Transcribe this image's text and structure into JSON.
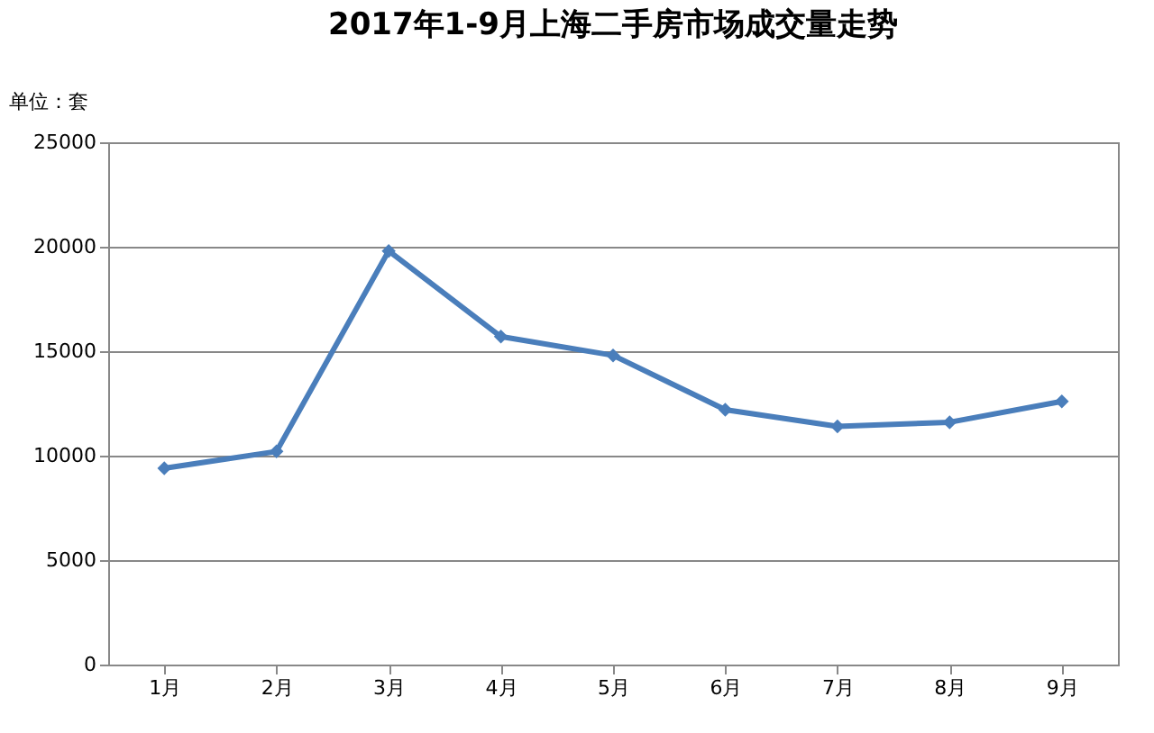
{
  "chart_data": {
    "type": "line",
    "title": "2017年1-9月上海二手房市场成交量走势",
    "ylabel": "单位：套",
    "categories": [
      "1月",
      "2月",
      "3月",
      "4月",
      "5月",
      "6月",
      "7月",
      "8月",
      "9月"
    ],
    "series": [
      {
        "color": "#4a7ebb",
        "values": [
          9400,
          10200,
          19800,
          15700,
          14800,
          12200,
          11400,
          11600,
          12600
        ]
      }
    ],
    "ylim": [
      0,
      25000
    ],
    "yticks": [
      0,
      5000,
      10000,
      15000,
      20000,
      25000
    ],
    "grid": "y",
    "legend": false,
    "marker": "diamond",
    "line_style": "solid"
  }
}
